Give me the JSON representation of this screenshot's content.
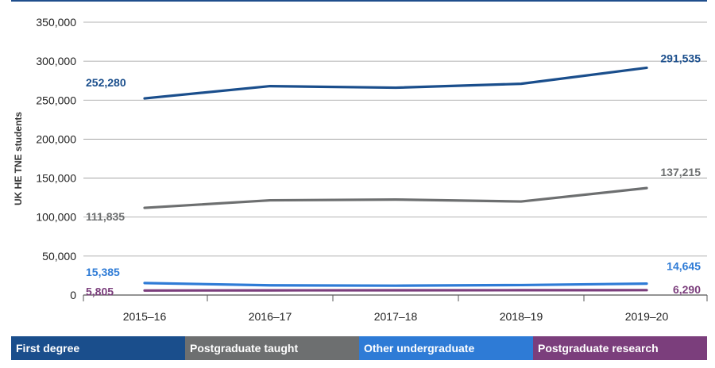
{
  "chart_data": {
    "type": "line",
    "categories": [
      "2015–16",
      "2016–17",
      "2017–18",
      "2018–19",
      "2019–20"
    ],
    "ylabel": "UK HE TNE students",
    "ylim": [
      0,
      350000
    ],
    "yticks": [
      0,
      50000,
      100000,
      150000,
      200000,
      250000,
      300000,
      350000
    ],
    "ytick_labels": [
      "0",
      "50,000",
      "100,000",
      "150,000",
      "200,000",
      "250,000",
      "300,000",
      "350,000"
    ],
    "grid": true,
    "legend_position": "bottom",
    "series": [
      {
        "name": "First degree",
        "color": "#1a4e8c",
        "values": [
          252280,
          268000,
          266000,
          271000,
          291535
        ],
        "start_label": "252,280",
        "end_label": "291,535"
      },
      {
        "name": "Postgraduate taught",
        "color": "#6d6f70",
        "values": [
          111835,
          121500,
          122500,
          120000,
          137215
        ],
        "start_label": "111,835",
        "end_label": "137,215"
      },
      {
        "name": "Other undergraduate",
        "color": "#2e7bd6",
        "values": [
          15385,
          12500,
          12000,
          12800,
          14645
        ],
        "start_label": "15,385",
        "end_label": "14,645"
      },
      {
        "name": "Postgraduate research",
        "color": "#7b3e7c",
        "values": [
          5805,
          6000,
          6100,
          6200,
          6290
        ],
        "start_label": "5,805",
        "end_label": "6,290"
      }
    ]
  }
}
